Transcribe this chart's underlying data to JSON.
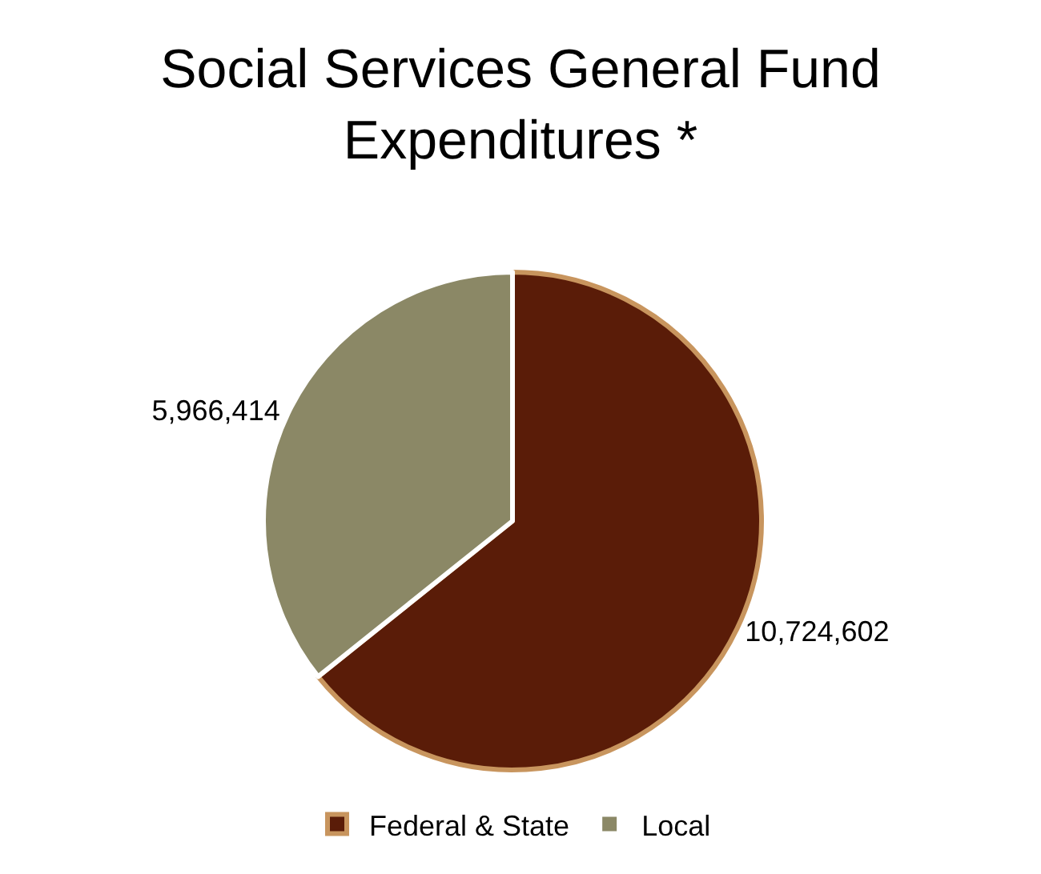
{
  "chart_data": {
    "type": "pie",
    "title": "Social Services General Fund Expenditures *",
    "categories": [
      "Federal & State",
      "Local"
    ],
    "values": [
      10724602,
      5966414
    ],
    "colors": [
      "#5a1c08",
      "#8b8866"
    ],
    "value_labels": [
      "10,724,602",
      "5,966,414"
    ],
    "legend": "bottom"
  }
}
